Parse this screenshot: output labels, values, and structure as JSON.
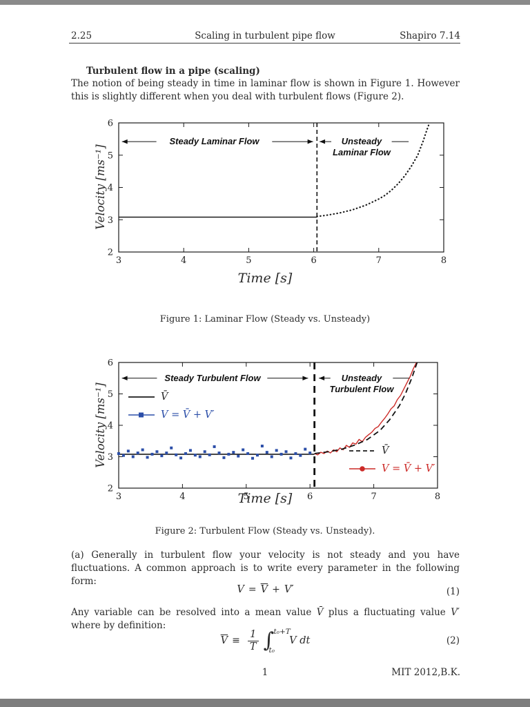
{
  "header": {
    "course": "2.25",
    "title": "Scaling in turbulent pipe flow",
    "ref": "Shapiro 7.14"
  },
  "body": {
    "heading": "Turbulent flow in a pipe (scaling)",
    "intro": "The notion of being steady in time in laminar flow is shown in Figure 1. However this is slightly different when you deal with turbulent flows (Figure 2).",
    "para_a": "(a) Generally in turbulent flow your velocity is not steady and you have fluctuations. A common approach is to write every parameter in the following form:",
    "between": {
      "t1": "Any variable can be resolved into a mean value ",
      "v1": "V̄",
      "t2": " plus a fluctuating value ",
      "v2": "V′",
      "t3": " where by definition:"
    },
    "eq1": {
      "v": "V",
      "eq": "=",
      "mean": "V",
      "plus": "+",
      "fluct": "V′",
      "number": "(1)"
    },
    "eq2": {
      "mean": "V",
      "equiv": "≡",
      "num": "1",
      "den": "T",
      "int": "∫",
      "upper": "t₀+T",
      "lower": "t₀",
      "integrand": "V dt",
      "number": "(2)"
    },
    "footer": {
      "page": "1",
      "right": "MIT 2012,B.K."
    }
  },
  "chart_data": [
    {
      "type": "line",
      "title": "Laminar Flow (Steady vs. Unsteady)",
      "caption": "Figure 1: Laminar Flow (Steady vs. Unsteady)",
      "xlabel": "Time [s]",
      "ylabel": "Velocity [ms⁻¹]",
      "xlim": [
        3,
        8
      ],
      "ylim": [
        2,
        6
      ],
      "xticks": [
        3,
        4,
        5,
        6,
        7,
        8
      ],
      "yticks": [
        2,
        3,
        4,
        5,
        6
      ],
      "grid": false,
      "annotations": {
        "steady": "Steady Laminar Flow",
        "unsteady1": "Unsteady",
        "unsteady2": "Laminar Flow"
      },
      "vline": {
        "x": 6.05,
        "width": 1.6,
        "dash": "6 4"
      },
      "series": [
        {
          "name": "steady-mean-velocity",
          "style": "solid",
          "color": "#1a1a1a",
          "width": 1.6,
          "points": [
            [
              3,
              3.08
            ],
            [
              6.05,
              3.08
            ]
          ]
        },
        {
          "name": "unsteady-velocity",
          "style": "dotted",
          "color": "#1a1a1a",
          "points": [
            [
              6.05,
              3.1
            ],
            [
              6.2,
              3.14
            ],
            [
              6.4,
              3.21
            ],
            [
              6.6,
              3.31
            ],
            [
              6.8,
              3.45
            ],
            [
              7.0,
              3.64
            ],
            [
              7.1,
              3.76
            ],
            [
              7.2,
              3.92
            ],
            [
              7.3,
              4.12
            ],
            [
              7.4,
              4.36
            ],
            [
              7.5,
              4.65
            ],
            [
              7.6,
              5.0
            ],
            [
              7.68,
              5.42
            ],
            [
              7.74,
              5.78
            ],
            [
              7.78,
              6.0
            ]
          ]
        }
      ]
    },
    {
      "type": "line",
      "title": "Turbulent Flow (Steady vs. Unsteady)",
      "caption": "Figure 2: Turbulent Flow (Steady vs. Unsteady).",
      "xlabel": "Time [s]",
      "ylabel": "Velocity [ms⁻¹]",
      "xlim": [
        3,
        8
      ],
      "ylim": [
        2,
        6
      ],
      "xticks": [
        3,
        4,
        5,
        6,
        7,
        8
      ],
      "yticks": [
        2,
        3,
        4,
        5,
        6
      ],
      "grid": false,
      "annotations": {
        "steady": "Steady Turbulent Flow",
        "unsteady1": "Unsteady",
        "unsteady2": "Turbulent Flow"
      },
      "vline": {
        "x": 6.07,
        "width": 2.8,
        "dash": "10 7"
      },
      "legend_topleft": [
        {
          "label": "V̄",
          "color": "#1a1a1a"
        },
        {
          "label": "V = V̄ + V′",
          "color": "#2b4ea8"
        }
      ],
      "legend_bottomright": [
        {
          "label": "V̄",
          "color": "#1a1a1a"
        },
        {
          "label": "V = V̄ + V′",
          "color": "#cc2a27"
        }
      ],
      "series": [
        {
          "name": "steady-mean-velocity",
          "style": "solid",
          "color": "#1a1a1a",
          "width": 1.6,
          "points": [
            [
              3,
              3.08
            ],
            [
              6.07,
              3.08
            ]
          ]
        },
        {
          "name": "steady-fluctuating-velocity",
          "style": "markers-square",
          "color": "#2b4ea8",
          "x_start": 3.0,
          "x_step": 0.075,
          "y": [
            3.1,
            3.04,
            3.18,
            3.0,
            3.12,
            3.22,
            2.98,
            3.08,
            3.16,
            3.03,
            3.12,
            3.28,
            3.06,
            2.96,
            3.1,
            3.2,
            3.05,
            3.0,
            3.16,
            3.06,
            3.32,
            3.12,
            2.97,
            3.08,
            3.14,
            3.02,
            3.22,
            3.1,
            2.95,
            3.05,
            3.34,
            3.14,
            3.0,
            3.2,
            3.08,
            3.16,
            2.96,
            3.1,
            3.04,
            3.24,
            3.12
          ]
        },
        {
          "name": "unsteady-fluctuating-velocity",
          "style": "solid",
          "color": "#cc2a27",
          "width": 1.4,
          "x_start": 6.07,
          "x_step": 0.05,
          "y": [
            3.1,
            3.06,
            3.14,
            3.1,
            3.18,
            3.12,
            3.22,
            3.16,
            3.28,
            3.22,
            3.36,
            3.3,
            3.44,
            3.4,
            3.55,
            3.48,
            3.62,
            3.7,
            3.78,
            3.9,
            3.96,
            4.1,
            4.22,
            4.36,
            4.52,
            4.62,
            4.82,
            4.95,
            5.15,
            5.35,
            5.55,
            5.8,
            6.0
          ]
        },
        {
          "name": "unsteady-mean-velocity",
          "style": "dashed",
          "color": "#111111",
          "width": 1.8,
          "points": [
            [
              6.07,
              3.1
            ],
            [
              6.3,
              3.16
            ],
            [
              6.5,
              3.24
            ],
            [
              6.7,
              3.37
            ],
            [
              6.9,
              3.55
            ],
            [
              7.1,
              3.84
            ],
            [
              7.25,
              4.18
            ],
            [
              7.4,
              4.62
            ],
            [
              7.5,
              5.02
            ],
            [
              7.6,
              5.52
            ],
            [
              7.68,
              6.0
            ]
          ]
        }
      ]
    }
  ]
}
